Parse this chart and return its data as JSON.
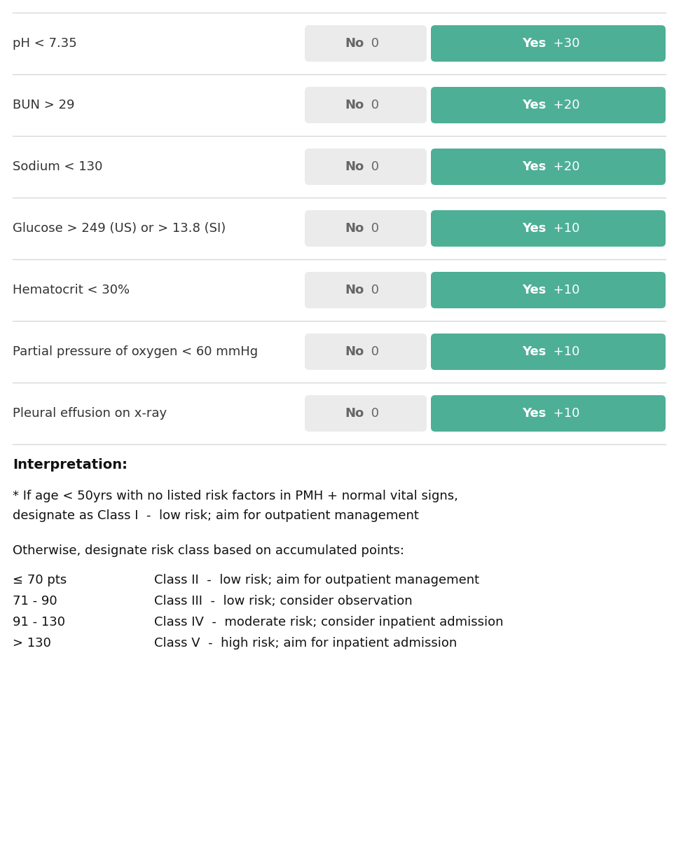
{
  "rows": [
    {
      "label": "pH < 7.35",
      "no_text": "No  0",
      "yes_text": "Yes  +30"
    },
    {
      "label": "BUN > 29",
      "no_text": "No  0",
      "yes_text": "Yes  +20"
    },
    {
      "label": "Sodium < 130",
      "no_text": "No  0",
      "yes_text": "Yes  +20"
    },
    {
      "label": "Glucose > 249 (US) or > 13.8 (SI)",
      "no_text": "No  0",
      "yes_text": "Yes  +10"
    },
    {
      "label": "Hematocrit < 30%",
      "no_text": "No  0",
      "yes_text": "Yes  +10"
    },
    {
      "label": "Partial pressure of oxygen < 60 mmHg",
      "no_text": "No  0",
      "yes_text": "Yes  +10"
    },
    {
      "label": "Pleural effusion on x-ray",
      "no_text": "No  0",
      "yes_text": "Yes  +10"
    }
  ],
  "bg_color": "#ffffff",
  "no_box_color": "#ebebeb",
  "yes_box_color": "#4daf96",
  "no_text_color": "#666666",
  "yes_text_color": "#ffffff",
  "label_color": "#333333",
  "separator_color": "#d8d8d8",
  "interpretation_title": "Interpretation:",
  "interpretation_star_line1": "* If age < 50yrs with no listed risk factors in PMH + normal vital signs,",
  "interpretation_star_line2": "designate as Class I  -  low risk; aim for outpatient management",
  "otherwise_text": "Otherwise, designate risk class based on accumulated points:",
  "class_keys": [
    "≤ 70 pts",
    "71 - 90",
    "91 - 130",
    "> 130"
  ],
  "class_values": [
    "Class II  -  low risk; aim for outpatient management",
    "Class III  -  low risk; consider observation",
    "Class IV  -  moderate risk; consider inpatient admission",
    "Class V  -  high risk; aim for inpatient admission"
  ]
}
